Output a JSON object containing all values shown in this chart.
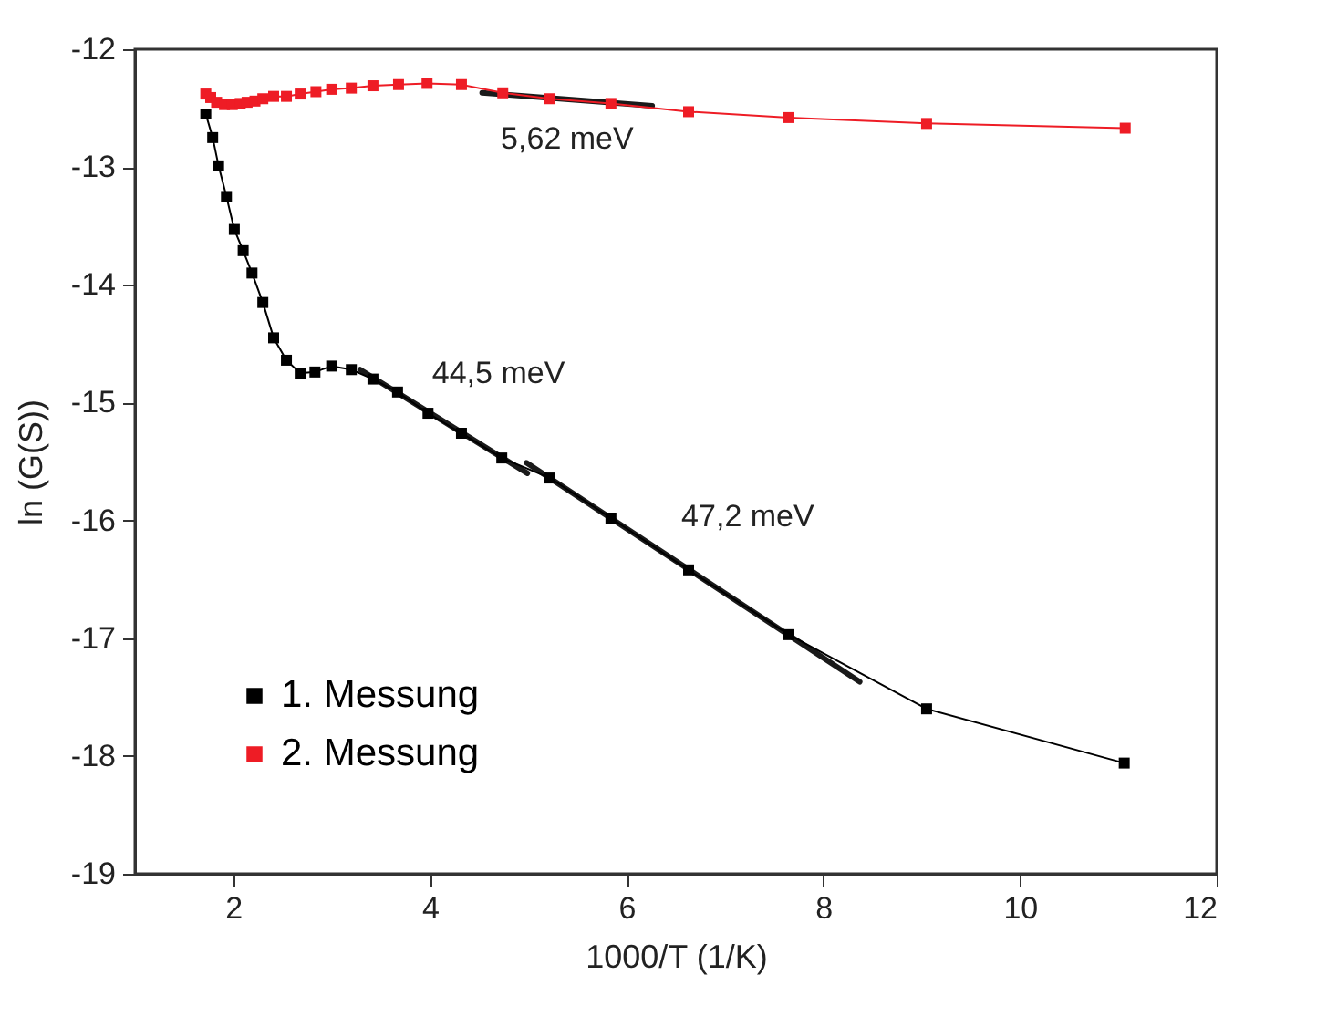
{
  "chart_data": {
    "type": "line",
    "xlabel": "1000/T (1/K)",
    "ylabel": "ln (G(S))",
    "xlim": [
      1,
      12
    ],
    "xticks": [
      2,
      4,
      6,
      8,
      10,
      12
    ],
    "ylim": [
      -19,
      -12
    ],
    "yticks": [
      -19,
      -18,
      -17,
      -16,
      -15,
      -14,
      -13,
      -12
    ],
    "grid": false,
    "legend": "bottom left",
    "marker": "square",
    "line_style": "solid",
    "series": [
      {
        "name": "1. Messung",
        "color": "#000000",
        "x": [
          1.72,
          1.79,
          1.85,
          1.93,
          2.01,
          2.1,
          2.19,
          2.3,
          2.41,
          2.54,
          2.68,
          2.83,
          3.0,
          3.2,
          3.42,
          3.67,
          3.98,
          4.32,
          4.73,
          5.22,
          5.84,
          6.63,
          7.65,
          9.05,
          11.06
        ],
        "values": [
          -12.55,
          -12.75,
          -12.99,
          -13.25,
          -13.53,
          -13.71,
          -13.9,
          -14.15,
          -14.45,
          -14.64,
          -14.75,
          -14.74,
          -14.69,
          -14.72,
          -14.8,
          -14.91,
          -15.09,
          -15.26,
          -15.47,
          -15.64,
          -15.98,
          -16.42,
          -16.97,
          -17.6,
          -18.06
        ]
      },
      {
        "name": "2. Messung",
        "color": "#ee1c25",
        "x": [
          1.72,
          1.77,
          1.83,
          1.91,
          1.99,
          2.07,
          2.14,
          2.22,
          2.3,
          2.41,
          2.54,
          2.68,
          2.84,
          3.0,
          3.2,
          3.42,
          3.68,
          3.97,
          4.32,
          4.74,
          5.22,
          5.84,
          6.63,
          7.65,
          9.05,
          11.07
        ],
        "values": [
          -12.38,
          -12.41,
          -12.45,
          -12.47,
          -12.47,
          -12.46,
          -12.45,
          -12.44,
          -12.42,
          -12.4,
          -12.4,
          -12.38,
          -12.36,
          -12.34,
          -12.33,
          -12.31,
          -12.3,
          -12.29,
          -12.3,
          -12.37,
          -12.42,
          -12.46,
          -12.53,
          -12.58,
          -12.63,
          -12.67
        ]
      },
      {
        "type": "line",
        "marker": "none",
        "color": "#1a1a1a",
        "x": [
          4.53,
          6.26
        ],
        "values": [
          -12.37,
          -12.48
        ]
      },
      {
        "type": "line",
        "marker": "none",
        "color": "#1a1a1a",
        "x": [
          3.29,
          4.99
        ],
        "values": [
          -14.72,
          -15.6
        ]
      },
      {
        "type": "line",
        "marker": "none",
        "color": "#1a1a1a",
        "x": [
          4.98,
          8.37
        ],
        "values": [
          -15.51,
          -17.37
        ]
      }
    ],
    "annotations": [
      "5,62 meV",
      "44,5 meV",
      "47,2 meV"
    ]
  }
}
